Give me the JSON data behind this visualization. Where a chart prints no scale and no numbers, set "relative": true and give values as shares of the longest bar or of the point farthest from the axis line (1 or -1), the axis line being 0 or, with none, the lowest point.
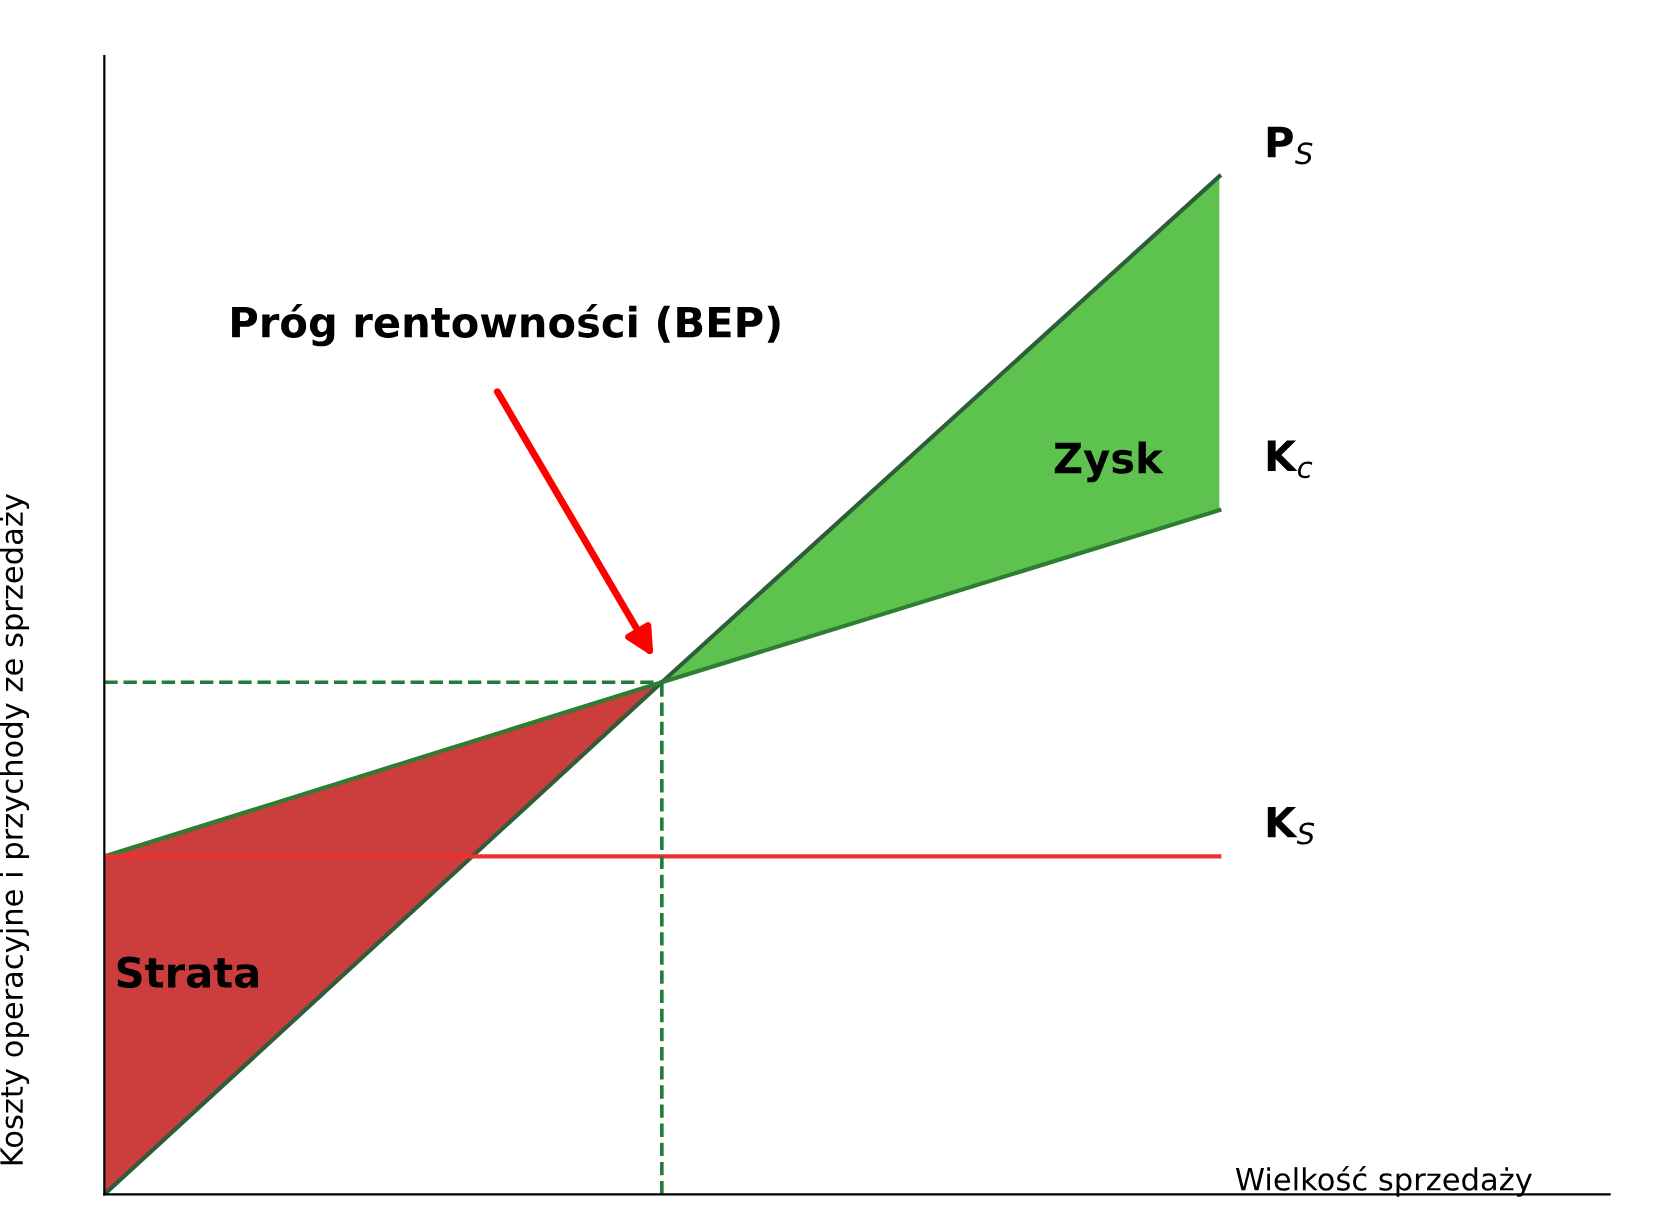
{
  "chart_data": {
    "type": "line",
    "relative": true,
    "categories": [
      null,
      null,
      null
    ],
    "xlabel": "Wielkość sprzedaży",
    "ylabel": "Koszty operacyjne i przychody ze sprzedaży",
    "series": [
      {
        "name": "Strata",
        "type": "area",
        "color": "#c62828",
        "values": [
          0.332,
          0.503,
          null
        ]
      },
      {
        "name": "Zysk",
        "type": "area",
        "color": "#4cbb3c",
        "values": [
          null,
          0.503,
          1
        ]
      },
      {
        "name": "P$_{S}$",
        "color": "#2f5d3a",
        "values": [
          0,
          0.503,
          1
        ]
      },
      {
        "name": "K$_{c}$",
        "color": "#2e7d32",
        "values": [
          0.332,
          0.503,
          0.672
        ]
      },
      {
        "name": "K$_{S}$",
        "color": "#ee3030",
        "values": [
          0.332,
          0.332,
          0.332
        ]
      }
    ],
    "ref_lines": [
      {
        "axis": "y",
        "value": 0.503,
        "color": "#1e7d3a",
        "line_style": "dashed"
      }
    ],
    "annotations": [
      "Próg rentowności (BEP)"
    ],
    "legend": false,
    "grid": false
  }
}
